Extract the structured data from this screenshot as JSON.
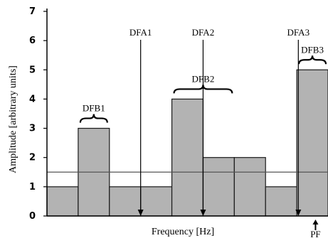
{
  "chart_data": {
    "type": "bar",
    "xlabel": "Frequency [Hz]",
    "ylabel": "Amplitude [arbitrary units]",
    "ylim": [
      0,
      7
    ],
    "yticks": [
      "0",
      "1",
      "2",
      "3",
      "4",
      "5",
      "6",
      "7"
    ],
    "grid": false,
    "values": [
      1,
      3,
      1,
      1,
      4,
      2,
      2,
      1,
      5
    ],
    "threshold": 1.5,
    "colors": {
      "bar": "#b3b3b3",
      "edge": "#1a1a1a",
      "threshold": "#555555",
      "background": "#ffffff"
    },
    "arrows": [
      {
        "label": "DFA1",
        "x": 3.0
      },
      {
        "label": "DFA2",
        "x": 5.0
      },
      {
        "label": "DFA3",
        "x": 8.05
      }
    ],
    "bands": [
      {
        "label": "DFB1",
        "start": 1,
        "end": 2
      },
      {
        "label": "DFB2",
        "start": 4,
        "end": 6
      },
      {
        "label": "DFB3",
        "start": 8,
        "end": 9
      }
    ],
    "marker": {
      "label": "PF",
      "x": 8.6
    }
  }
}
